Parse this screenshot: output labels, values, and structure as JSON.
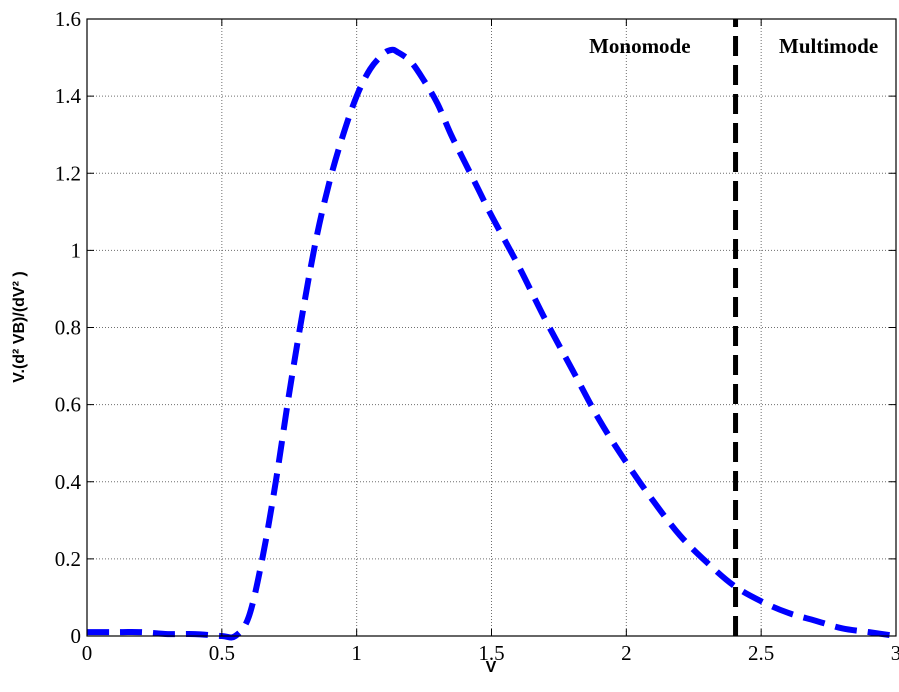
{
  "chart_data": {
    "type": "line",
    "xlabel": "V",
    "ylabel": "V.(d² VB)/(dV² )",
    "xlim": [
      0,
      3
    ],
    "ylim": [
      0,
      1.6
    ],
    "grid": true,
    "x_ticks": [
      0,
      0.5,
      1,
      1.5,
      2,
      2.5,
      3
    ],
    "x_tick_labels": [
      "0",
      "0.5",
      "1",
      "1.5",
      "2",
      "2.5",
      "3"
    ],
    "y_ticks": [
      0,
      0.2,
      0.4,
      0.6,
      0.8,
      1,
      1.2,
      1.4,
      1.6
    ],
    "y_tick_labels": [
      "0",
      "0.2",
      "0.4",
      "0.6",
      "0.8",
      "1",
      "1.2",
      "1.4",
      "1.6"
    ],
    "series": [
      {
        "color": "#0000ff",
        "line_style": "dashed",
        "x": [
          0,
          0.1,
          0.2,
          0.3,
          0.4,
          0.5,
          0.55,
          0.6,
          0.65,
          0.7,
          0.75,
          0.8,
          0.85,
          0.9,
          0.95,
          1.0,
          1.05,
          1.1,
          1.13,
          1.15,
          1.2,
          1.25,
          1.3,
          1.35,
          1.4,
          1.45,
          1.5,
          1.6,
          1.7,
          1.8,
          1.9,
          2.0,
          2.1,
          2.2,
          2.3,
          2.4,
          2.5,
          2.6,
          2.7,
          2.8,
          2.9,
          3.0
        ],
        "y": [
          0.01,
          0.01,
          0.01,
          0.005,
          0.005,
          0.0,
          0.0,
          0.05,
          0.2,
          0.4,
          0.63,
          0.84,
          1.03,
          1.18,
          1.3,
          1.4,
          1.47,
          1.51,
          1.52,
          1.515,
          1.49,
          1.44,
          1.38,
          1.3,
          1.23,
          1.16,
          1.09,
          0.96,
          0.82,
          0.69,
          0.56,
          0.45,
          0.35,
          0.26,
          0.19,
          0.13,
          0.09,
          0.06,
          0.04,
          0.02,
          0.01,
          0.0
        ]
      },
      {
        "color": "#000000",
        "line_style": "dashed",
        "x": [
          2.405,
          2.405
        ],
        "y": [
          0,
          1.6
        ]
      }
    ],
    "annotations": [
      {
        "text": "Monomode",
        "x": 2.05,
        "y": 1.53
      },
      {
        "text": "Multimode",
        "x": 2.75,
        "y": 1.53
      }
    ]
  }
}
